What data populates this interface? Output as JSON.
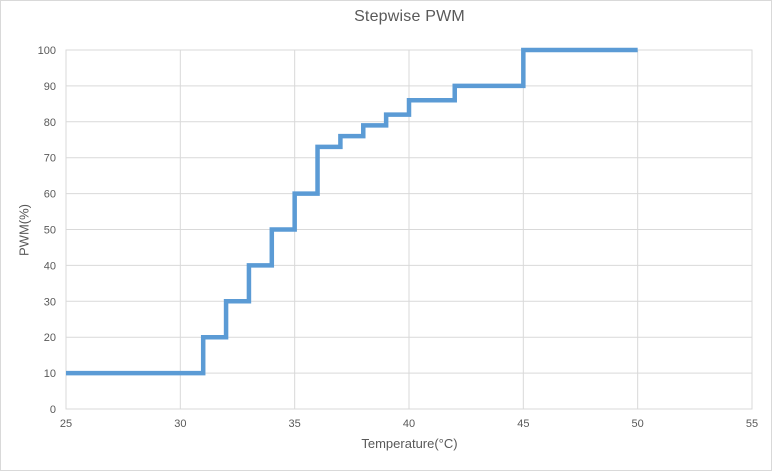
{
  "chart_data": {
    "type": "line",
    "title": "Stepwise PWM",
    "xlabel": "Temperature(°C)",
    "ylabel": "PWM(%)",
    "xlim": [
      25,
      55
    ],
    "ylim": [
      0,
      100
    ],
    "xticks": [
      25,
      30,
      35,
      40,
      45,
      50,
      55
    ],
    "yticks": [
      0,
      10,
      20,
      30,
      40,
      50,
      60,
      70,
      80,
      90,
      100
    ],
    "grid": true,
    "legend_position": "none",
    "series": [
      {
        "name": "PWM",
        "color": "#5B9BD5",
        "step_mode": "horizontal-then-vertical",
        "points": [
          [
            25,
            10
          ],
          [
            31,
            20
          ],
          [
            32,
            30
          ],
          [
            33,
            40
          ],
          [
            34,
            50
          ],
          [
            35,
            60
          ],
          [
            36,
            73
          ],
          [
            37,
            76
          ],
          [
            38,
            79
          ],
          [
            39,
            82
          ],
          [
            40,
            86
          ],
          [
            42,
            90
          ],
          [
            45,
            100
          ],
          [
            50,
            100
          ]
        ]
      }
    ]
  },
  "colors": {
    "line": "#5B9BD5",
    "gridline": "#D9D9D9",
    "plot_border": "#D9D9D9",
    "chart_border": "#D9D9D9",
    "title_text": "#595959",
    "axis_text": "#595959",
    "background": "#FFFFFF"
  }
}
